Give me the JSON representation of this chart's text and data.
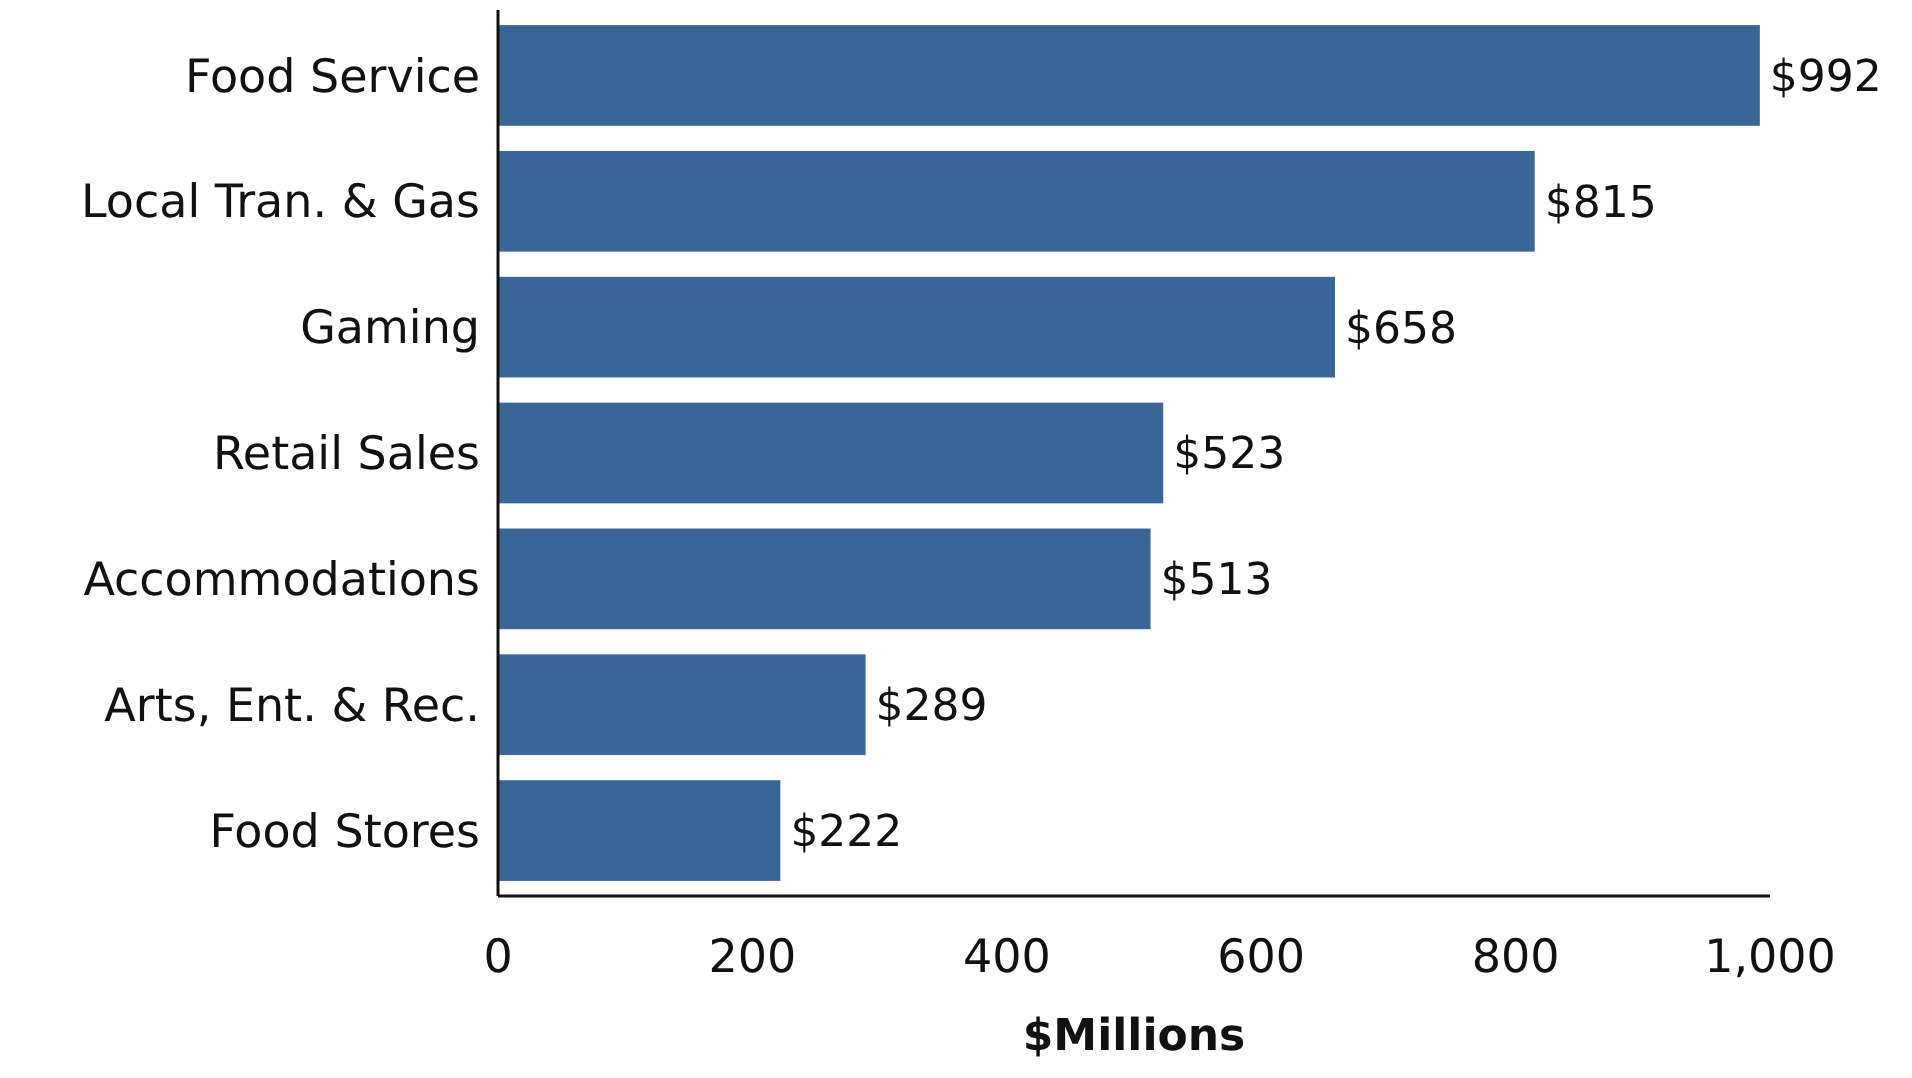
{
  "chart_data": {
    "type": "bar",
    "orientation": "horizontal",
    "xlabel": "$Millions",
    "categories": [
      "Food Service",
      "Local Tran. & Gas",
      "Gaming",
      "Retail Sales",
      "Accommodations",
      "Arts, Ent. & Rec.",
      "Food Stores"
    ],
    "values": [
      992,
      815,
      658,
      523,
      513,
      289,
      222
    ],
    "value_labels": [
      "$992",
      "$815",
      "$658",
      "$523",
      "$513",
      "$289",
      "$222"
    ],
    "color": "#3a6597",
    "xlim": [
      0,
      1000
    ],
    "xticks": [
      0,
      200,
      400,
      600,
      800,
      {
        "value": 1000,
        "label": "1,000"
      }
    ],
    "grid": false
  }
}
